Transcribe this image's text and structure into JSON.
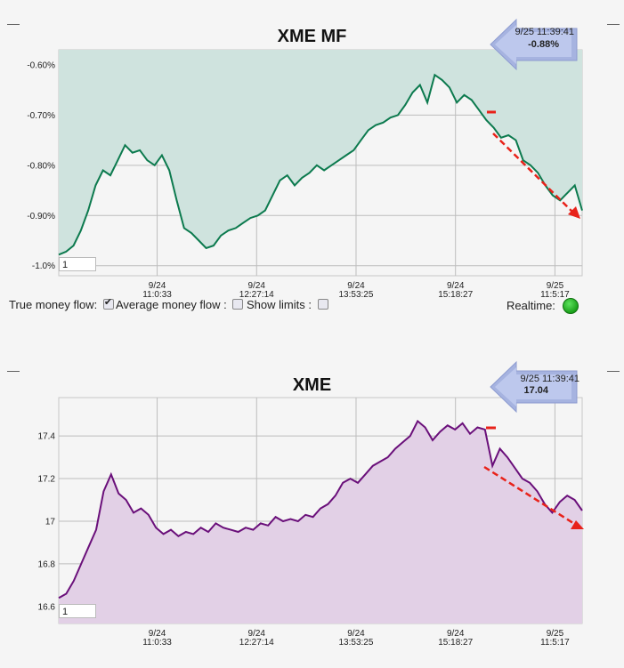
{
  "colors": {
    "mf_line": "#0c7a4e",
    "mf_fill": "#cfe3de",
    "price_line": "#6a0f7a",
    "price_fill": "#e2d0e6",
    "arrow": "#e8221a",
    "grid": "#bdbdbd"
  },
  "mf_panel": {
    "title": "XME MF",
    "tooltip_time": "9/25 11:39:41",
    "tooltip_value": "-0.88%",
    "input_value": "1",
    "true_mf_label": "True money flow:",
    "true_mf_checked": true,
    "avg_mf_label": "Average money flow :",
    "avg_mf_checked": false,
    "show_limits_label": "Show limits :",
    "show_limits_checked": false,
    "realtime_label": "Realtime:"
  },
  "price_panel": {
    "title": "XME",
    "tooltip_time": "9/25 11:39:41",
    "tooltip_value": "17.04",
    "input_value": "1"
  },
  "chart_data": [
    {
      "type": "area",
      "title": "XME MF",
      "xlabel": "",
      "ylabel": "",
      "x_ticks": [
        {
          "date": "9/24",
          "time": "11:0:33"
        },
        {
          "date": "9/24",
          "time": "12:27:14"
        },
        {
          "date": "9/24",
          "time": "13:53:25"
        },
        {
          "date": "9/24",
          "time": "15:18:27"
        },
        {
          "date": "9/25",
          "time": "11:5:17"
        }
      ],
      "y_ticks": [
        "-0.60%",
        "-0.70%",
        "-0.80%",
        "-0.90%",
        "-1.0%"
      ],
      "y_tick_values": [
        -0.6,
        -0.7,
        -0.8,
        -0.9,
        -1.0
      ],
      "ylim": [
        -1.02,
        -0.57
      ],
      "grid": true,
      "legend": "none",
      "series": [
        {
          "values": [
            -0.978,
            -0.972,
            -0.96,
            -0.93,
            -0.89,
            -0.84,
            -0.81,
            -0.82,
            -0.79,
            -0.76,
            -0.775,
            -0.77,
            -0.79,
            -0.8,
            -0.78,
            -0.81,
            -0.87,
            -0.925,
            -0.935,
            -0.95,
            -0.965,
            -0.96,
            -0.94,
            -0.93,
            -0.925,
            -0.915,
            -0.905,
            -0.9,
            -0.89,
            -0.86,
            -0.83,
            -0.82,
            -0.84,
            -0.825,
            -0.815,
            -0.8,
            -0.81,
            -0.8,
            -0.79,
            -0.78,
            -0.77,
            -0.75,
            -0.73,
            -0.72,
            -0.715,
            -0.705,
            -0.7,
            -0.68,
            -0.655,
            -0.64,
            -0.675,
            -0.62,
            -0.63,
            -0.645,
            -0.675,
            -0.66,
            -0.67,
            -0.69,
            -0.71,
            -0.725,
            -0.745,
            -0.74,
            -0.75,
            -0.79,
            -0.8,
            -0.815,
            -0.84,
            -0.86,
            -0.87,
            -0.855,
            -0.84,
            -0.89
          ]
        }
      ],
      "annotations": [
        "9/25 11:39:41",
        "-0.88%"
      ]
    },
    {
      "type": "area",
      "title": "XME",
      "xlabel": "",
      "ylabel": "",
      "x_ticks": [
        {
          "date": "9/24",
          "time": "11:0:33"
        },
        {
          "date": "9/24",
          "time": "12:27:14"
        },
        {
          "date": "9/24",
          "time": "13:53:25"
        },
        {
          "date": "9/24",
          "time": "15:18:27"
        },
        {
          "date": "9/25",
          "time": "11:5:17"
        }
      ],
      "y_ticks": [
        "17.4",
        "17.2",
        "17",
        "16.8",
        "16.6"
      ],
      "y_tick_values": [
        17.4,
        17.2,
        17.0,
        16.8,
        16.6
      ],
      "ylim": [
        16.52,
        17.58
      ],
      "grid": true,
      "legend": "none",
      "series": [
        {
          "values": [
            16.64,
            16.66,
            16.72,
            16.8,
            16.88,
            16.96,
            17.14,
            17.22,
            17.13,
            17.1,
            17.04,
            17.06,
            17.03,
            16.97,
            16.94,
            16.96,
            16.93,
            16.95,
            16.94,
            16.97,
            16.95,
            16.99,
            16.97,
            16.96,
            16.95,
            16.97,
            16.96,
            16.99,
            16.98,
            17.02,
            17.0,
            17.01,
            17.0,
            17.03,
            17.02,
            17.06,
            17.08,
            17.12,
            17.18,
            17.2,
            17.18,
            17.22,
            17.26,
            17.28,
            17.3,
            17.34,
            17.37,
            17.4,
            17.47,
            17.44,
            17.38,
            17.42,
            17.45,
            17.43,
            17.46,
            17.41,
            17.44,
            17.43,
            17.26,
            17.34,
            17.3,
            17.25,
            17.2,
            17.18,
            17.14,
            17.08,
            17.04,
            17.09,
            17.12,
            17.1,
            17.05
          ]
        }
      ],
      "annotations": [
        "9/25 11:39:41",
        "17.04"
      ]
    }
  ]
}
